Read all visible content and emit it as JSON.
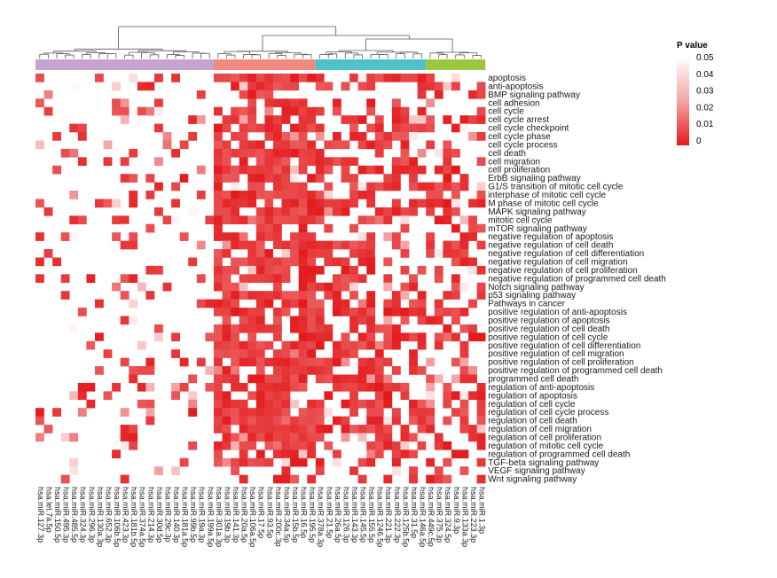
{
  "chart_data": {
    "type": "heatmap",
    "title": "",
    "legend": {
      "title": "P value",
      "ticks": [
        "0.05",
        "0.04",
        "0.03",
        "0.02",
        "0.01",
        "0"
      ],
      "range": [
        0,
        0.05
      ],
      "placement": "top-right"
    },
    "colors": {
      "low": "#e31a1c",
      "high": "#ffffff",
      "dendrogram": "#555555",
      "clusters": [
        "#c6a4cf",
        "#f08a80",
        "#4fc1c9",
        "#9cc63d"
      ]
    },
    "cluster_sizes": [
      21,
      12,
      13,
      7
    ],
    "rows": [
      "apoptosis",
      "anti-apoptosis",
      "BMP signaling pathway",
      "cell adhesion",
      "cell cycle",
      "cell cycle arrest",
      "cell cycle checkpoint",
      "cell cycle phase",
      "cell cycle process",
      "cell death",
      "cell migration",
      "cell proliferation",
      "ErbB signaling pathway",
      "G1/S transition of mitotic cell cycle",
      "interphase of mitotic cell cycle",
      "M phase of mitotic cell cycle",
      "MAPK signaling pathway",
      "mitotic cell cycle",
      "mTOR signaling pathway",
      "negative regulation of apoptosis",
      "negative regulation of cell death",
      "negative regulation of cell differentiation",
      "negative regulation of cell migration",
      "negative regulation of cell proliferation",
      "negative regulation of programmed cell death",
      "Notch signaling pathway",
      "p53 signaling pathway",
      "Pathways in cancer",
      "positive regulation of anti-apoptosis",
      "positive regulation of apoptosis",
      "positive regulation of cell death",
      "positive regulation of cell cycle",
      "positive regulation of cell differentiation",
      "positive regulation of cell migration",
      "positive regulation of cell proliferation",
      "positive regulation of programmed cell death",
      "programmed cell death",
      "regulation of anti-apoptosis",
      "regulation of apoptosis",
      "regulation of cell cycle",
      "regulation of cell cycle process",
      "regulation of cell death",
      "regulation of cell migration",
      "regulation of cell proliferation",
      "regulation of mitotic cell cycle",
      "regulation of programmed cell death",
      "TGF-beta signaling pathway",
      "VEGF signaling pathway",
      "Wnt signaling pathway"
    ],
    "columns": [
      "hsa.miR.127.3p",
      "hsa.let.7a.5p",
      "hsa.miR.150.5p",
      "hsa.miR.495.3p",
      "hsa.miR.485.5p",
      "hsa.miR.324.3p",
      "hsa.miR.296.3p",
      "hsa.miR.130a.3p",
      "hsa.miR.652.3p",
      "hsa.miR.106b.5p",
      "hsa.miR.423.3p",
      "hsa.miR.181b.5p",
      "hsa.miR.374a.5p",
      "hsa.miR.214.3p",
      "hsa.miR.30d.5p",
      "hsa.miR.29c.3p",
      "hsa.miR.140.3p",
      "hsa.miR.181a.5p",
      "hsa.miR.99b.5p",
      "hsa.miR.19a.3p",
      "hsa.miR.199a.5p",
      "hsa.miR.301a.3p",
      "hsa.miR.19b.3p",
      "hsa.miR.141.3p",
      "hsa.miR.20a.5p",
      "hsa.miR.106a.5p",
      "hsa.miR.17.5p",
      "hsa.miR.93.5p",
      "hsa.miR.200c.3p",
      "hsa.miR.34a.5p",
      "hsa.miR.15b.5p",
      "hsa.miR.16.5p",
      "hsa.miR.195.5p",
      "hsa.miR.378a.3p",
      "hsa.miR.21.5p",
      "hsa.miR.26a.5p",
      "hsa.miR.126.3p",
      "hsa.miR.143.3p",
      "hsa.miR.145.5p",
      "hsa.miR.155.5p",
      "hsa.miR.1246.5p",
      "hsa.miR.221.3p",
      "hsa.miR.222.3p",
      "hsa.miR.125b.5p",
      "hsa.miR.31.5p",
      "hsa.miR.146a.5p",
      "hsa.miR.449c.5p",
      "hsa.miR.375.3p",
      "hsa.miR.324.5p",
      "hsa.miR.9.3p",
      "hsa.miR.133a.3p",
      "hsa.miR.223.3p",
      "hsa.miR.1.3p"
    ],
    "seed": 20240611,
    "density_model": "p-values: cluster 1 sparse (mostly >0.05), clusters 2-4 dense with many p<0.01",
    "values": []
  }
}
